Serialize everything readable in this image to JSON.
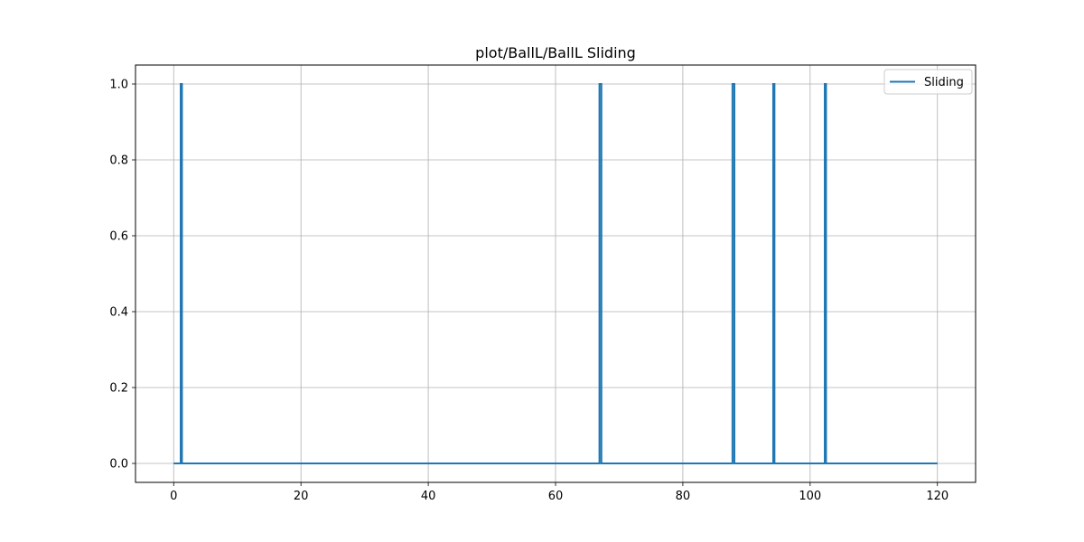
{
  "chart_data": {
    "type": "line",
    "title": "plot/BallL/BallL Sliding",
    "xlabel": "",
    "ylabel": "",
    "xlim": [
      -6,
      126
    ],
    "ylim": [
      -0.05,
      1.05
    ],
    "xticks": [
      0,
      20,
      40,
      60,
      80,
      100,
      120
    ],
    "yticks": [
      0.0,
      0.2,
      0.4,
      0.6,
      0.8,
      1.0
    ],
    "xtick_labels": [
      "0",
      "20",
      "40",
      "60",
      "80",
      "100",
      "120"
    ],
    "ytick_labels": [
      "0.0",
      "0.2",
      "0.4",
      "0.6",
      "0.8",
      "1.0"
    ],
    "grid": true,
    "legend_position": "top-right",
    "series": [
      {
        "name": "Sliding",
        "color": "#1f77b4",
        "x": [
          0,
          1.1,
          1.1,
          1.3,
          1.3,
          66.9,
          66.9,
          67.2,
          67.2,
          87.8,
          87.8,
          88.1,
          88.1,
          94.2,
          94.2,
          94.4,
          94.4,
          102.3,
          102.3,
          102.5,
          102.5,
          120
        ],
        "y": [
          0,
          0,
          1,
          1,
          0,
          0,
          1,
          1,
          0,
          0,
          1,
          1,
          0,
          0,
          1,
          1,
          0,
          0,
          1,
          1,
          0,
          0
        ]
      }
    ]
  }
}
